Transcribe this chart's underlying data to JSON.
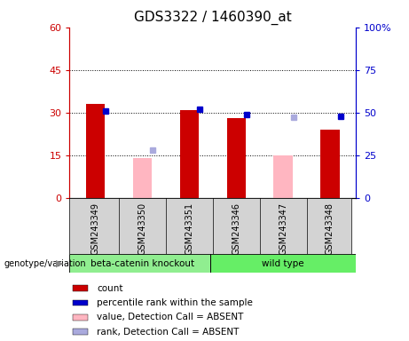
{
  "title": "GDS3322 / 1460390_at",
  "categories": [
    "GSM243349",
    "GSM243350",
    "GSM243351",
    "GSM243346",
    "GSM243347",
    "GSM243348"
  ],
  "count_values": [
    33,
    null,
    31,
    28,
    null,
    24
  ],
  "count_absent_values": [
    null,
    14,
    null,
    null,
    15,
    null
  ],
  "percentile_values": [
    51,
    null,
    52,
    49,
    null,
    48
  ],
  "percentile_absent_values": [
    null,
    28,
    null,
    null,
    47,
    null
  ],
  "ylim_left": [
    0,
    60
  ],
  "ylim_right": [
    0,
    100
  ],
  "yticks_left": [
    0,
    15,
    30,
    45,
    60
  ],
  "ytick_labels_left": [
    "0",
    "15",
    "30",
    "45",
    "60"
  ],
  "yticks_right": [
    0,
    25,
    50,
    75,
    100
  ],
  "ytick_labels_right": [
    "0",
    "25",
    "50",
    "75",
    "100%"
  ],
  "left_axis_color": "#cc0000",
  "right_axis_color": "#0000cc",
  "bar_width": 0.4,
  "count_color": "#cc0000",
  "count_absent_color": "#ffb6c1",
  "percentile_color": "#0000cc",
  "percentile_absent_color": "#aaaadd",
  "bg_plot": "#ffffff",
  "bg_label": "#d3d3d3",
  "group_label_left": "beta-catenin knockout",
  "group_label_right": "wild type",
  "group_color_left": "#90ee90",
  "group_color_right": "#66ee66",
  "genotype_label": "genotype/variation",
  "legend_items": [
    {
      "color": "#cc0000",
      "label": "count"
    },
    {
      "color": "#0000cc",
      "label": "percentile rank within the sample"
    },
    {
      "color": "#ffb6c1",
      "label": "value, Detection Call = ABSENT"
    },
    {
      "color": "#aaaadd",
      "label": "rank, Detection Call = ABSENT"
    }
  ]
}
